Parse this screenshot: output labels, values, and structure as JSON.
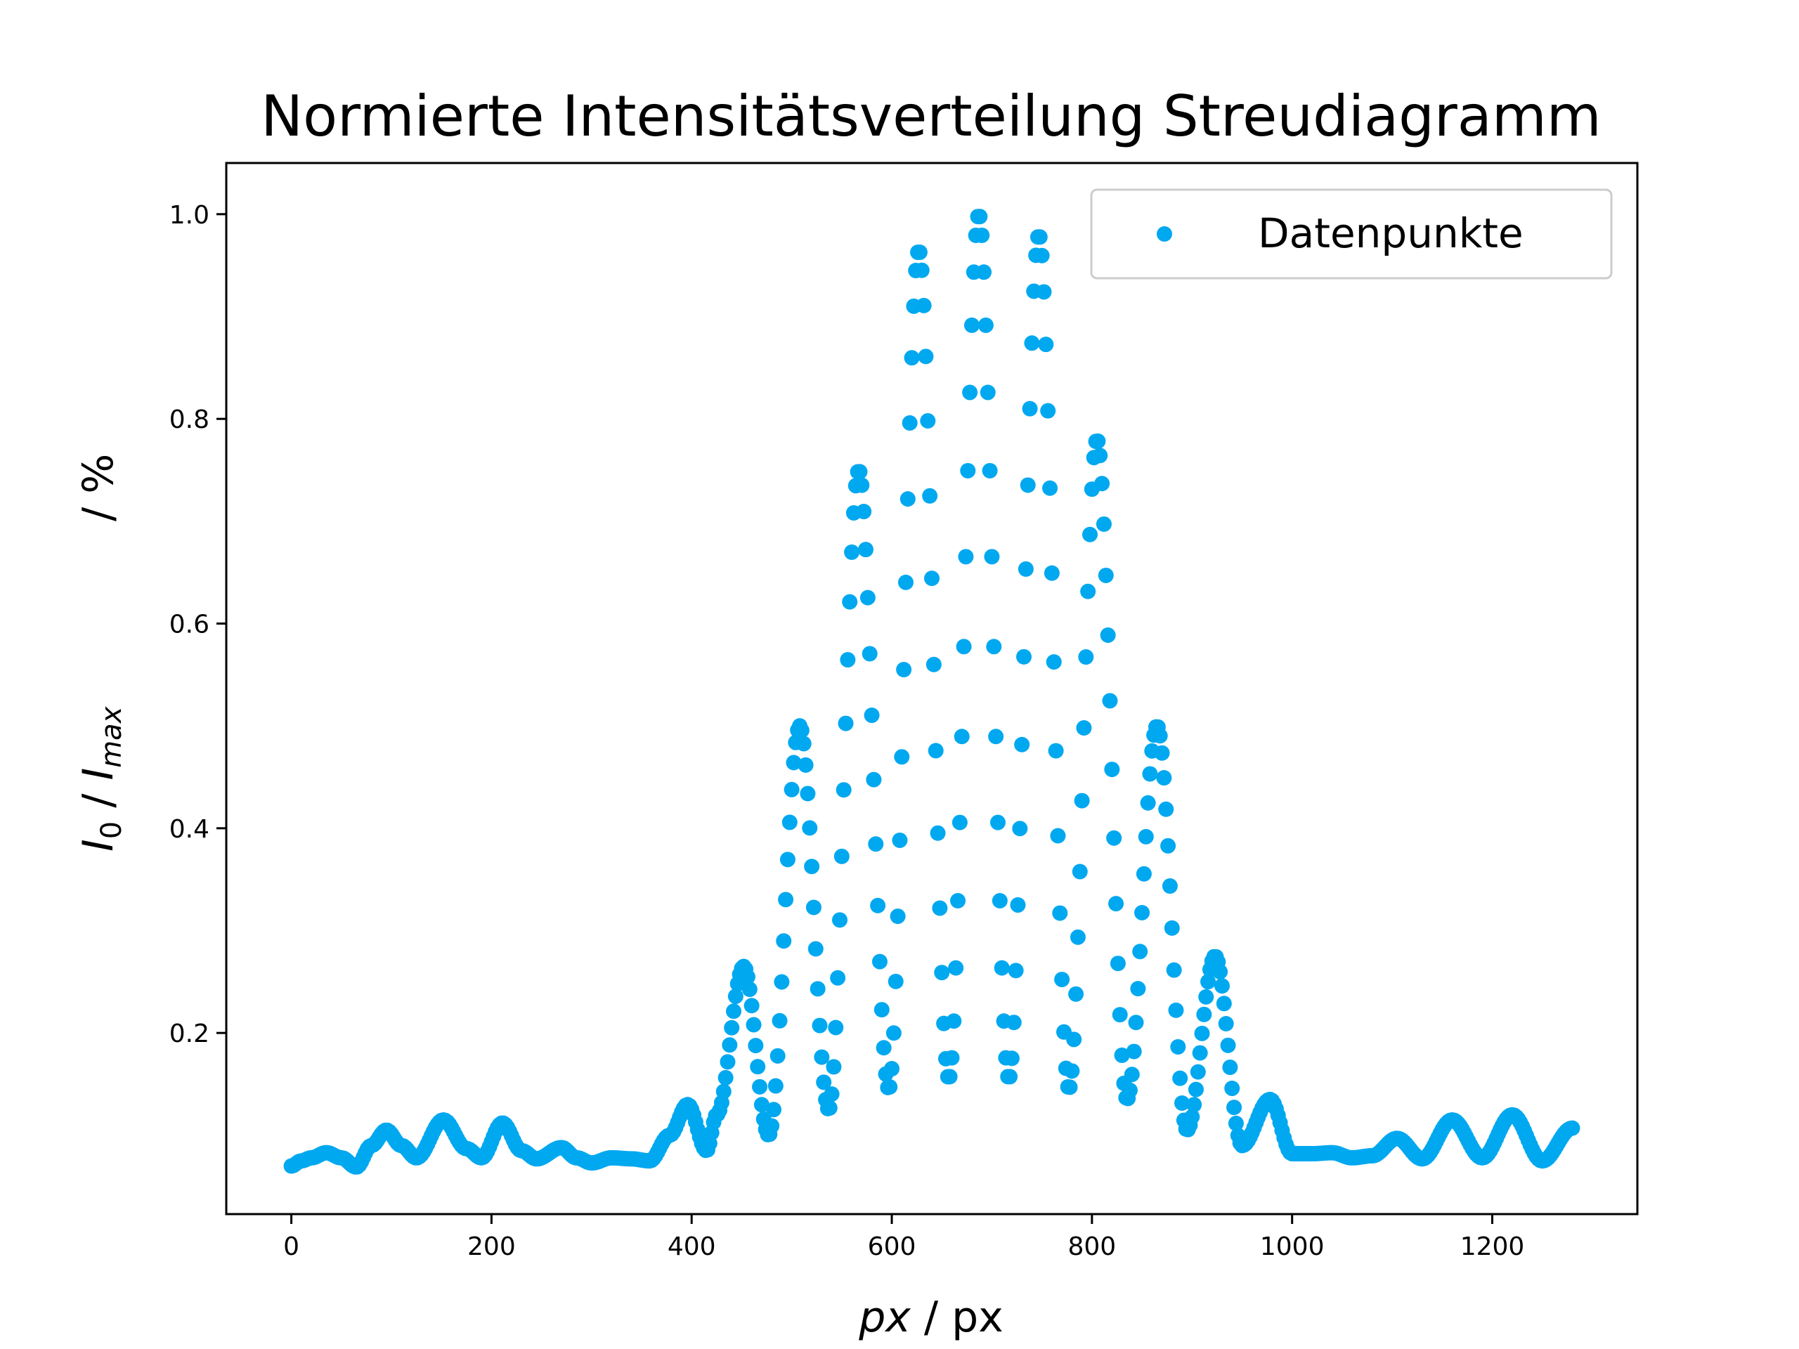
{
  "chart_data": {
    "type": "scatter",
    "title": "Normierte Intensitätsverteilung Streudiagramm",
    "xlabel_italic": "px",
    "xlabel_rest": " / px",
    "ylabel_i0": "I",
    "ylabel_i0_sub": "0",
    "ylabel_sep": " / ",
    "ylabel_imax": "I",
    "ylabel_imax_sub": "max",
    "ylabel_unit": "/ %",
    "xlim": [
      -65,
      1345
    ],
    "ylim": [
      0.023,
      1.05
    ],
    "xticks": [
      0,
      200,
      400,
      600,
      800,
      1000,
      1200
    ],
    "xtick_labels": [
      "0",
      "200",
      "400",
      "600",
      "800",
      "1000",
      "1200"
    ],
    "yticks": [
      0.2,
      0.4,
      0.6,
      0.8,
      1.0
    ],
    "ytick_labels": [
      "0.2",
      "0.4",
      "0.6",
      "0.8",
      "1.0"
    ],
    "x_range": [
      0,
      1280
    ],
    "point_spacing": 2,
    "legend": {
      "label": "Datenpunkte",
      "position": "upper right"
    },
    "color": "#00a8f0",
    "series": [
      {
        "name": "Datenpunkte",
        "x": [
          0,
          10,
          20,
          35,
          50,
          65,
          80,
          95,
          110,
          125,
          152,
          175,
          190,
          211,
          230,
          245,
          270,
          285,
          300,
          320,
          340,
          358,
          378,
          396,
          415,
          425,
          452,
          477,
          508,
          537,
          567,
          597,
          627,
          657,
          687,
          717,
          747,
          777,
          805,
          835,
          865,
          895,
          923,
          950,
          978,
          1000,
          1020,
          1040,
          1060,
          1080,
          1105,
          1130,
          1160,
          1190,
          1220,
          1250,
          1280
        ],
        "y": [
          0.07,
          0.075,
          0.078,
          0.083,
          0.078,
          0.069,
          0.09,
          0.105,
          0.09,
          0.078,
          0.115,
          0.087,
          0.078,
          0.112,
          0.085,
          0.077,
          0.088,
          0.078,
          0.073,
          0.078,
          0.077,
          0.075,
          0.1,
          0.13,
          0.085,
          0.12,
          0.265,
          0.1,
          0.5,
          0.125,
          0.75,
          0.145,
          0.965,
          0.155,
          1.0,
          0.155,
          0.98,
          0.145,
          0.78,
          0.135,
          0.5,
          0.105,
          0.275,
          0.09,
          0.135,
          0.082,
          0.082,
          0.083,
          0.078,
          0.08,
          0.097,
          0.077,
          0.115,
          0.078,
          0.12,
          0.075,
          0.107
        ]
      }
    ]
  }
}
